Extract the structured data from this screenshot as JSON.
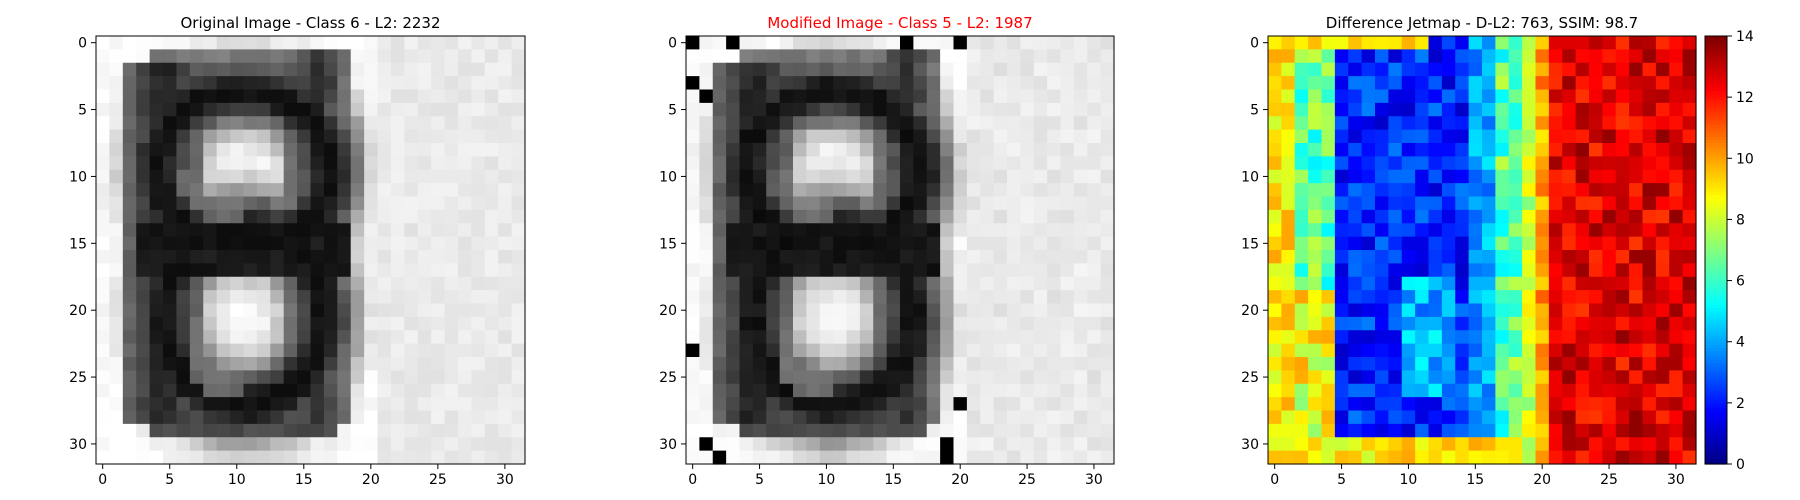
{
  "chart_data": [
    {
      "type": "heatmap",
      "title": "Original Image - Class 6 - L2: 2232",
      "title_color": "#000000",
      "colormap": "gray",
      "grid": false,
      "xlim": [
        -0.5,
        31.5
      ],
      "ylim": [
        31.5,
        -0.5
      ],
      "xticks": [
        0,
        5,
        10,
        15,
        20,
        25,
        30
      ],
      "yticks": [
        0,
        5,
        10,
        15,
        20,
        25,
        30
      ],
      "description_values": "32x32 grayscale image of the digit 6; values shown as intensities"
    },
    {
      "type": "heatmap",
      "title": "Modified Image - Class 5 - L2: 1987",
      "title_color": "#ff0000",
      "colormap": "gray",
      "grid": false,
      "xlim": [
        -0.5,
        31.5
      ],
      "ylim": [
        31.5,
        -0.5
      ],
      "xticks": [
        0,
        5,
        10,
        15,
        20,
        25,
        30
      ],
      "yticks": [
        0,
        5,
        10,
        15,
        20,
        25,
        30
      ]
    },
    {
      "type": "heatmap",
      "title": "Difference Jetmap - D-L2: 763, SSIM: 98.7",
      "title_color": "#000000",
      "colormap": "jet",
      "grid": false,
      "xlim": [
        -0.5,
        31.5
      ],
      "ylim": [
        31.5,
        -0.5
      ],
      "xticks": [
        0,
        5,
        10,
        15,
        20,
        25,
        30
      ],
      "yticks": [
        0,
        5,
        10,
        15,
        20,
        25,
        30
      ],
      "colorbar": {
        "min": 0,
        "max": 14,
        "ticks": [
          0,
          2,
          4,
          6,
          8,
          10,
          12,
          14
        ]
      }
    }
  ]
}
